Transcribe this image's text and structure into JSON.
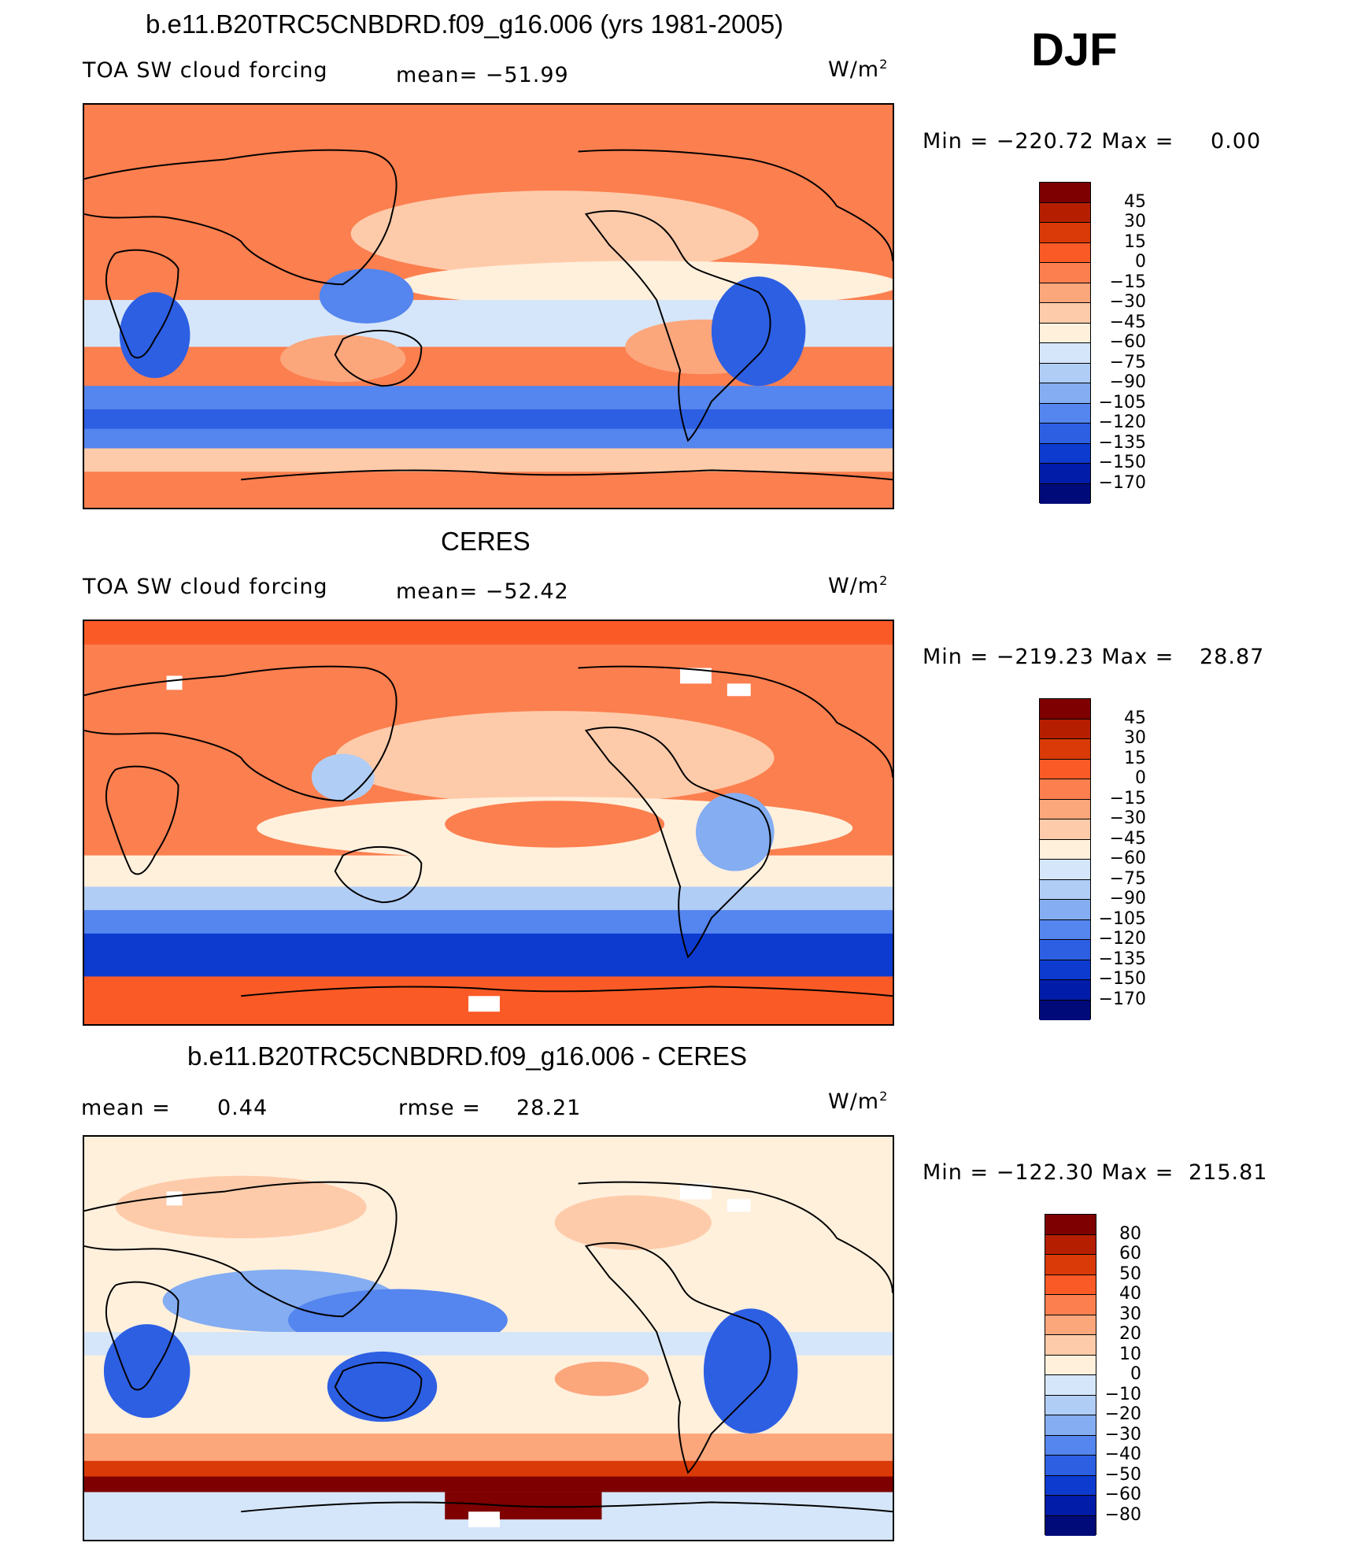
{
  "season": "DJF",
  "units_base": "W/m",
  "units_exp": "2",
  "panels": [
    {
      "title": "b.e11.B20TRC5CNBDRD.f09_g16.006 (yrs 1981-2005)",
      "variable": "TOA SW cloud forcing",
      "stat1": "mean=  −51.99",
      "stat2": "",
      "min_label": "Min  =  −220.72  Max  =",
      "max_value": "0.00",
      "levels": [
        "45",
        "30",
        "15",
        "0",
        "−15",
        "−30",
        "−45",
        "−60",
        "−75",
        "−90",
        "−105",
        "−120",
        "−135",
        "−150",
        "−170"
      ],
      "colors": [
        "#7e0000",
        "#b51f00",
        "#d93a08",
        "#fa5a26",
        "#fc7f4f",
        "#fca67c",
        "#fecbaa",
        "#fff0dc",
        "#d5e6fa",
        "#b0cdf5",
        "#84adf2",
        "#5585ee",
        "#2d5fe3",
        "#0d3bd0",
        "#001ca8",
        "#000a78"
      ]
    },
    {
      "title": "CERES",
      "variable": "TOA SW cloud forcing",
      "stat1": "mean=  −52.42",
      "stat2": "",
      "min_label": "Min  =  −219.23  Max  =",
      "max_value": "28.87",
      "levels": [
        "45",
        "30",
        "15",
        "0",
        "−15",
        "−30",
        "−45",
        "−60",
        "−75",
        "−90",
        "−105",
        "−120",
        "−135",
        "−150",
        "−170"
      ],
      "colors": [
        "#7e0000",
        "#b51f00",
        "#d93a08",
        "#fa5a26",
        "#fc7f4f",
        "#fca67c",
        "#fecbaa",
        "#fff0dc",
        "#d5e6fa",
        "#b0cdf5",
        "#84adf2",
        "#5585ee",
        "#2d5fe3",
        "#0d3bd0",
        "#001ca8",
        "#000a78"
      ]
    },
    {
      "title": "b.e11.B20TRC5CNBDRD.f09_g16.006 - CERES",
      "variable": "mean  =",
      "variable_value": "0.44",
      "stat1": "rmse  =",
      "stat1_value": "28.21",
      "min_label": "Min  =  −122.30  Max  =",
      "max_value": "215.81",
      "levels": [
        "80",
        "60",
        "50",
        "40",
        "30",
        "20",
        "10",
        "0",
        "−10",
        "−20",
        "−30",
        "−40",
        "−50",
        "−60",
        "−80"
      ],
      "colors": [
        "#7e0000",
        "#b51f00",
        "#d93a08",
        "#fa5a26",
        "#fc7f4f",
        "#fca67c",
        "#fecbaa",
        "#fff0dc",
        "#d5e6fa",
        "#b0cdf5",
        "#84adf2",
        "#5585ee",
        "#2d5fe3",
        "#0d3bd0",
        "#001ca8",
        "#000a78"
      ]
    }
  ]
}
